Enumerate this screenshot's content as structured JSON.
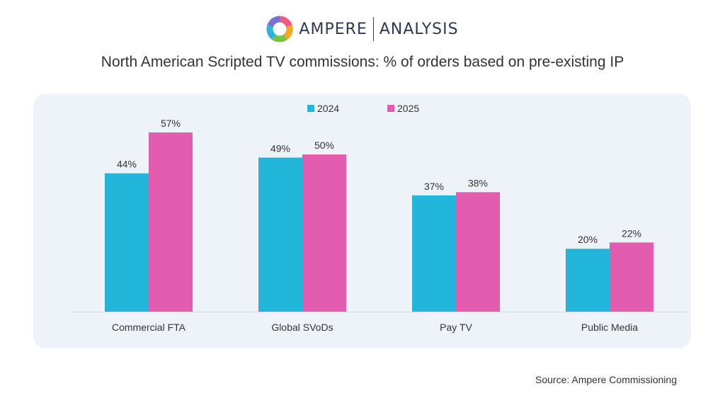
{
  "brand": {
    "name_left": "AMPERE",
    "name_right": "ANALYSIS",
    "colors": [
      "#f05a7e",
      "#f5a623",
      "#7ac143",
      "#28b6d9",
      "#7b6fd6"
    ]
  },
  "chart_data": {
    "type": "bar",
    "title": "North American Scripted TV commissions: % of orders based on pre-existing IP",
    "categories": [
      "Commercial FTA",
      "Global SVoDs",
      "Pay TV",
      "Public Media"
    ],
    "series": [
      {
        "name": "2024",
        "values": [
          44,
          49,
          37,
          20
        ],
        "labels": [
          "44%",
          "49%",
          "37%",
          "20%"
        ],
        "color": "#22b6da"
      },
      {
        "name": "2025",
        "values": [
          57,
          50,
          38,
          22
        ],
        "labels": [
          "57%",
          "50%",
          "38%",
          "22%"
        ],
        "color": "#e25cb0"
      }
    ],
    "ylim": [
      0,
      60
    ],
    "grid": false,
    "legend": "top-center"
  },
  "source": "Source: Ampere Commissioning"
}
